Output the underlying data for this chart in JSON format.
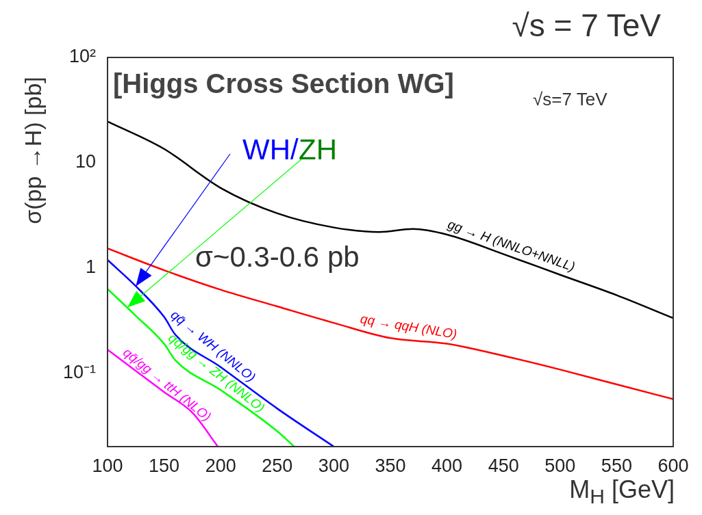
{
  "chart_data": {
    "type": "line",
    "title": "√s = 7 TeV",
    "xlabel": "M$_{H}$ [GeV]",
    "ylabel": "σ(pp →H) [pb]",
    "annotations": [
      "[Higgs Cross Section WG]",
      "√s=7 TeV",
      {
        "text": "WH/",
        "x": 125,
        "y": 0.67
      },
      {
        "text": "ZH",
        "x": 117.5,
        "y": 0.42
      },
      "σ~0.3-0.6 pb"
    ],
    "log": "y",
    "grid": false,
    "legend": false,
    "marker": "none",
    "line_style": "solid",
    "xlim": [
      100,
      600
    ],
    "xticks": [
      100,
      150,
      200,
      250,
      300,
      350,
      400,
      450,
      500,
      550,
      600
    ],
    "ylim": [
      0.02,
      100
    ],
    "yticks": [
      {
        "value": 0.1,
        "label": "10⁻¹"
      },
      1,
      10,
      {
        "value": 100,
        "label": "10²"
      }
    ],
    "series": [
      {
        "name": "gg → H (NNLO+NNLL)",
        "color": "#000000",
        "x": [
          100,
          150,
          200,
          250,
          300,
          340,
          370,
          400,
          450,
          500,
          550,
          600
        ],
        "values": [
          24.6,
          13.5,
          5.75,
          3.3,
          2.42,
          2.19,
          2.34,
          2.07,
          1.35,
          0.86,
          0.55,
          0.333
        ]
      },
      {
        "name": "qq → qqH (NLO)",
        "color": "#ff0000",
        "x": [
          100,
          150,
          200,
          250,
          300,
          350,
          400,
          450,
          500,
          550,
          600
        ],
        "values": [
          1.53,
          0.95,
          0.62,
          0.43,
          0.3,
          0.215,
          0.19,
          0.146,
          0.108,
          0.078,
          0.0565
        ]
      },
      {
        "name": "qq̄ → WH (NNLO)",
        "color": "#0000ff",
        "x": [
          100,
          125,
          150,
          160,
          200,
          250,
          300
        ],
        "values": [
          1.19,
          0.67,
          0.342,
          0.231,
          0.114,
          0.046,
          0.02
        ]
      },
      {
        "name": "qq̄/gg → ZH (NNLO)",
        "color": "#00ff00",
        "x": [
          100,
          125,
          150,
          160,
          200,
          250,
          265
        ],
        "values": [
          0.63,
          0.35,
          0.19,
          0.132,
          0.069,
          0.028,
          0.02
        ]
      },
      {
        "name": "qq̄/gg → ttH (NLO)",
        "color": "#ff00ff",
        "x": [
          100,
          150,
          175,
          197.5
        ],
        "values": [
          0.167,
          0.066,
          0.042,
          0.02
        ]
      }
    ]
  }
}
